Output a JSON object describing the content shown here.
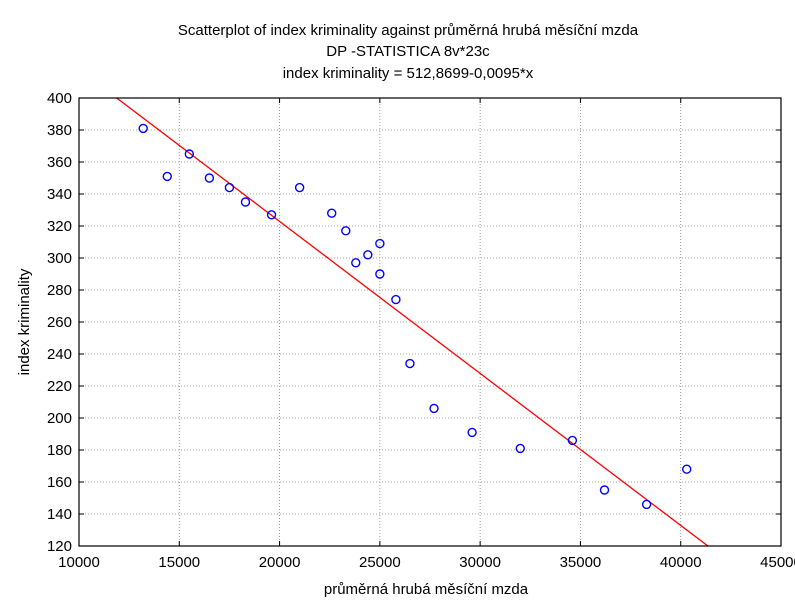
{
  "chart_data": {
    "type": "scatter",
    "title": "Scatterplot of index kriminality against průměrná hrubá měsíční mzda",
    "subtitle": "DP -STATISTICA 8v*23c",
    "equation": "index kriminality = 512,8699-0,0095*x",
    "xlabel": "průměrná hrubá měsíční mzda",
    "ylabel": "index kriminality",
    "xlim": [
      10000,
      45000
    ],
    "ylim": [
      120,
      400
    ],
    "x_ticks": [
      10000,
      15000,
      20000,
      25000,
      30000,
      35000,
      40000,
      45000
    ],
    "y_ticks": [
      120,
      140,
      160,
      180,
      200,
      220,
      240,
      260,
      280,
      300,
      320,
      340,
      360,
      380,
      400
    ],
    "grid": true,
    "points": [
      {
        "x": 13200,
        "y": 381
      },
      {
        "x": 14400,
        "y": 351
      },
      {
        "x": 15500,
        "y": 365
      },
      {
        "x": 16500,
        "y": 350
      },
      {
        "x": 17500,
        "y": 344
      },
      {
        "x": 18300,
        "y": 335
      },
      {
        "x": 19600,
        "y": 327
      },
      {
        "x": 21000,
        "y": 344
      },
      {
        "x": 22600,
        "y": 328
      },
      {
        "x": 23300,
        "y": 317
      },
      {
        "x": 23800,
        "y": 297
      },
      {
        "x": 24400,
        "y": 302
      },
      {
        "x": 25000,
        "y": 309
      },
      {
        "x": 25000,
        "y": 290
      },
      {
        "x": 25800,
        "y": 274
      },
      {
        "x": 26500,
        "y": 234
      },
      {
        "x": 27700,
        "y": 206
      },
      {
        "x": 29600,
        "y": 191
      },
      {
        "x": 32000,
        "y": 181
      },
      {
        "x": 34600,
        "y": 186
      },
      {
        "x": 36200,
        "y": 155
      },
      {
        "x": 38300,
        "y": 146
      },
      {
        "x": 40300,
        "y": 168
      }
    ],
    "fit_line": {
      "intercept": 512.8699,
      "slope": -0.0095
    },
    "colors": {
      "points": "#0000ff",
      "fit_line": "#ff0000",
      "grid": "#888888"
    }
  }
}
